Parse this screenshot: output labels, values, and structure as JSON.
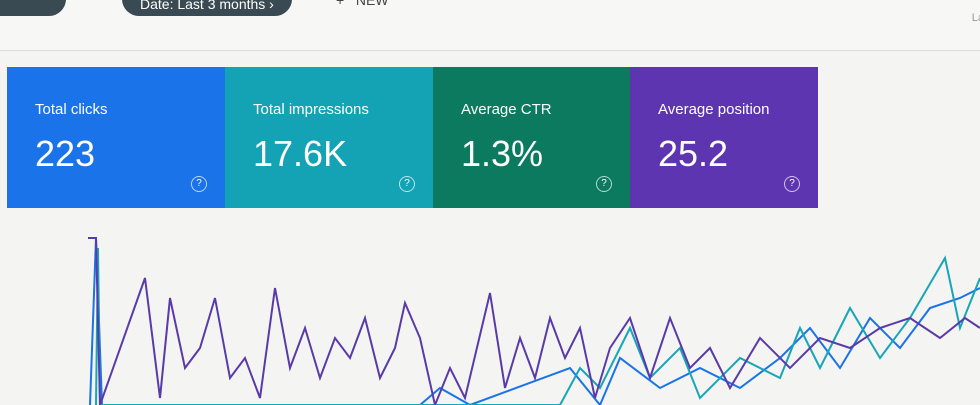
{
  "toolbar": {
    "filter": "Date: Last 3 months",
    "new": "NEW",
    "right": "La"
  },
  "cards": [
    {
      "label": "Total clicks",
      "value": "223"
    },
    {
      "label": "Total impressions",
      "value": "17.6K"
    },
    {
      "label": "Average CTR",
      "value": "1.3%"
    },
    {
      "label": "Average position",
      "value": "25.2"
    }
  ]
}
